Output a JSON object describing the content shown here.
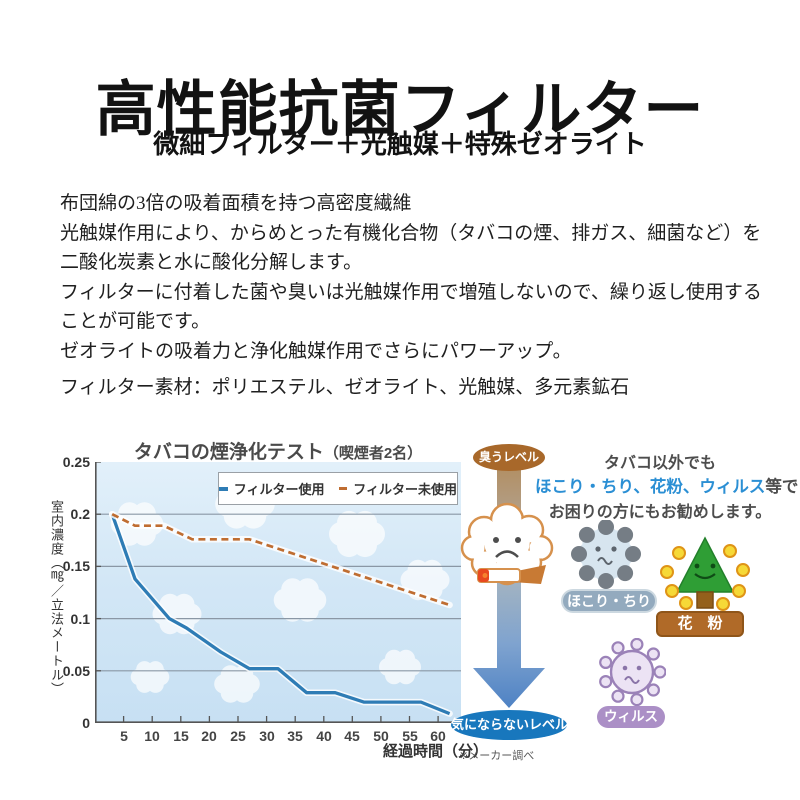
{
  "page": {
    "title": "高性能抗菌フィルター",
    "subtitle": "微細フィルター＋光触媒＋特殊ゼオライト",
    "description_lines": [
      "布団綿の3倍の吸着面積を持つ高密度繊維",
      "光触媒作用により、からめとった有機化合物（タバコの煙、排ガス、細菌など）を",
      "二酸化炭素と水に酸化分解します。",
      "フィルターに付着した菌や臭いは光触媒作用で増殖しないので、繰り返し使用する",
      "ことが可能です。",
      "ゼオライトの吸着力と浄化触媒作用でさらにパワーアップ。"
    ],
    "material_line": "フィルター素材：ポリエステル、ゼオライト、光触媒、多元素鉱石"
  },
  "chart_data": {
    "type": "line",
    "title": "タバコの煙浄化テスト",
    "title_suffix": "（喫煙者2名）",
    "xlabel": "経過時間（分）",
    "ylabel": "室内濃度（㎎／立法メートル）",
    "note": "※メーカー調べ",
    "xlim": [
      0,
      64
    ],
    "ylim": [
      0,
      0.25
    ],
    "x_ticks": [
      5,
      10,
      15,
      20,
      25,
      30,
      35,
      40,
      45,
      50,
      55,
      60
    ],
    "y_ticks": [
      0,
      0.05,
      0.1,
      0.15,
      0.2,
      0.25
    ],
    "grid": true,
    "legend_position": "top-inside",
    "background": "light-blue sky with white clouds",
    "series": [
      {
        "name": "フィルター使用",
        "style": "solid",
        "color": "#2e7cb5",
        "points": [
          [
            3,
            0.2
          ],
          [
            7,
            0.138
          ],
          [
            13,
            0.1
          ],
          [
            16,
            0.091
          ],
          [
            22,
            0.068
          ],
          [
            27,
            0.052
          ],
          [
            32,
            0.052
          ],
          [
            37,
            0.029
          ],
          [
            42,
            0.029
          ],
          [
            47,
            0.02
          ],
          [
            57,
            0.02
          ],
          [
            62,
            0.009
          ]
        ]
      },
      {
        "name": "フィルター未使用",
        "style": "dashed",
        "color": "#bf6d31",
        "points": [
          [
            3,
            0.2
          ],
          [
            7,
            0.189
          ],
          [
            12,
            0.189
          ],
          [
            17,
            0.176
          ],
          [
            27,
            0.176
          ],
          [
            62,
            0.113
          ]
        ]
      }
    ]
  },
  "flow": {
    "top_badge": "臭うレベル",
    "top_badge_color": "#a8682a",
    "bottom_badge": "気にならないレベル",
    "bottom_badge_color": "#1877bd",
    "character_icon": "sad-smoke-cloud-with-cigarette-icon",
    "arrow_icon": "down-arrow-icon"
  },
  "recommend": {
    "line1": "タバコ以外でも",
    "line2_highlight": "ほこり・ちり、花粉、ウィルス",
    "line2_rest": "等で",
    "line3": "お困りの方にもお勧めします。",
    "highlight_color": "#2b8fd4",
    "items": [
      {
        "label": "ほこり・ちり",
        "icon": "dust-particle-icon",
        "badge_color": "#93aabe"
      },
      {
        "label": "花　粉",
        "icon": "pollen-tree-icon",
        "badge_color": "#b06a28"
      },
      {
        "label": "ウィルス",
        "icon": "virus-icon",
        "badge_color": "#ab8fc6"
      }
    ]
  }
}
